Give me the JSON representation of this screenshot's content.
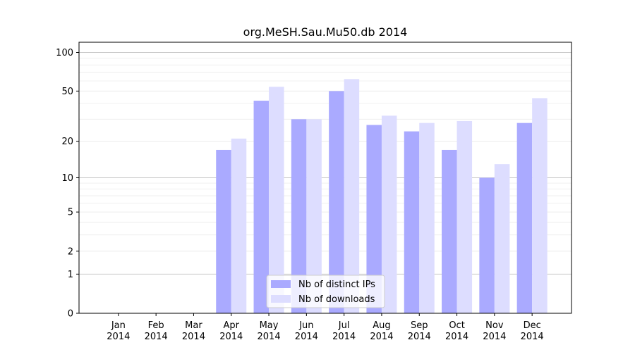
{
  "chart_data": {
    "type": "bar",
    "title": "org.MeSH.Sau.Mu50.db 2014",
    "xlabel": "",
    "ylabel": "",
    "yscale": "log1p",
    "ylim": [
      0,
      120
    ],
    "grid": true,
    "legend_position": "bottom-center",
    "categories": [
      "Jan\n2014",
      "Feb\n2014",
      "Mar\n2014",
      "Apr\n2014",
      "May\n2014",
      "Jun\n2014",
      "Jul\n2014",
      "Aug\n2014",
      "Sep\n2014",
      "Oct\n2014",
      "Nov\n2014",
      "Dec\n2014"
    ],
    "yticks": [
      0,
      1,
      2,
      5,
      10,
      20,
      50,
      100
    ],
    "series": [
      {
        "name": "Nb of distinct IPs",
        "color": "#aaaaff",
        "values": [
          0,
          0,
          0,
          17,
          42,
          30,
          50,
          27,
          24,
          17,
          10,
          28
        ]
      },
      {
        "name": "Nb of downloads",
        "color": "#ddddff",
        "values": [
          0,
          0,
          0,
          21,
          54,
          30,
          62,
          32,
          28,
          29,
          13,
          44
        ]
      }
    ]
  }
}
